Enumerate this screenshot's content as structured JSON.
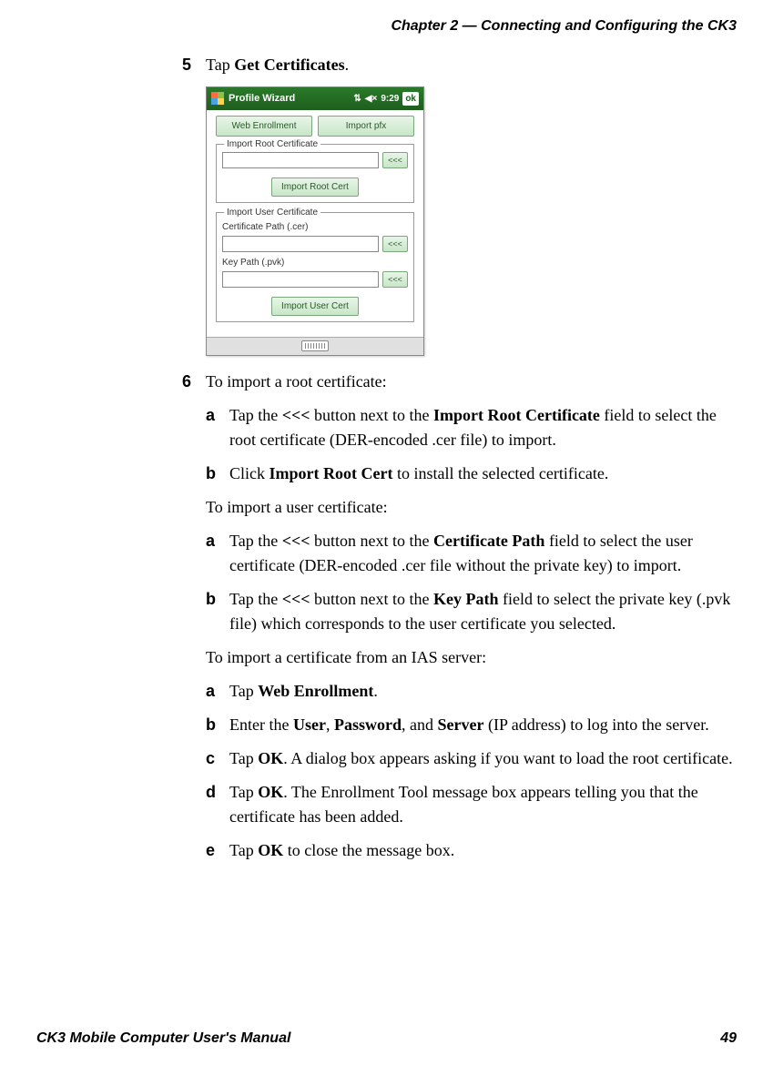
{
  "header": {
    "chapter": "Chapter 2 — Connecting and Configuring the CK3"
  },
  "steps": {
    "s5": {
      "num": "5",
      "text_pre": "Tap ",
      "bold": "Get Certificates",
      "text_post": "."
    },
    "s6": {
      "num": "6",
      "text": "To import a root certificate:"
    }
  },
  "screenshot": {
    "title": "Profile Wizard",
    "time": "9:29",
    "ok": "ok",
    "web_enrollment": "Web Enrollment",
    "import_pfx": "Import pfx",
    "root_legend": "Import Root Certificate",
    "browse": "<<<",
    "import_root_cert": "Import Root Cert",
    "user_legend": "Import User Certificate",
    "cert_path_label": "Certificate Path (.cer)",
    "key_path_label": "Key Path (.pvk)",
    "import_user_cert": "Import User Cert"
  },
  "root_sub": {
    "a": {
      "l": "a",
      "pre": "Tap the ",
      "b1": "<<<",
      "m1": " button next to the ",
      "b2": "Import Root Certificate",
      "post": " field to select the root certificate (DER-encoded .cer file) to import."
    },
    "b": {
      "l": "b",
      "pre": "Click ",
      "b1": "Import Root Cert",
      "post": " to install the selected certificate."
    }
  },
  "user_intro": "To import a user certificate:",
  "user_sub": {
    "a": {
      "l": "a",
      "pre": "Tap the ",
      "b1": "<<<",
      "m1": " button next to the ",
      "b2": "Certificate Path",
      "post": " field to select the user certificate (DER-encoded .cer file without the private key) to import."
    },
    "b": {
      "l": "b",
      "pre": "Tap the ",
      "b1": "<<<",
      "m1": " button next to the ",
      "b2": "Key Path",
      "post": " field to select the private key (.pvk file) which corresponds to the user certificate you selected."
    }
  },
  "ias_intro": "To import a certificate from an IAS server:",
  "ias_sub": {
    "a": {
      "l": "a",
      "pre": "Tap ",
      "b1": "Web Enrollment",
      "post": "."
    },
    "b": {
      "l": "b",
      "pre": "Enter the ",
      "b1": "User",
      "m1": ", ",
      "b2": "Password",
      "m2": ", and ",
      "b3": "Server",
      "post": " (IP address) to log into the server."
    },
    "c": {
      "l": "c",
      "pre": "Tap ",
      "b1": "OK",
      "post": ". A dialog box appears asking if you want to load the root certificate."
    },
    "d": {
      "l": "d",
      "pre": "Tap ",
      "b1": "OK",
      "post": ". The Enrollment Tool message box appears telling you that the certificate has been added."
    },
    "e": {
      "l": "e",
      "pre": "Tap ",
      "b1": "OK",
      "post": " to close the message box."
    }
  },
  "footer": {
    "title": "CK3 Mobile Computer User's Manual",
    "page": "49"
  }
}
